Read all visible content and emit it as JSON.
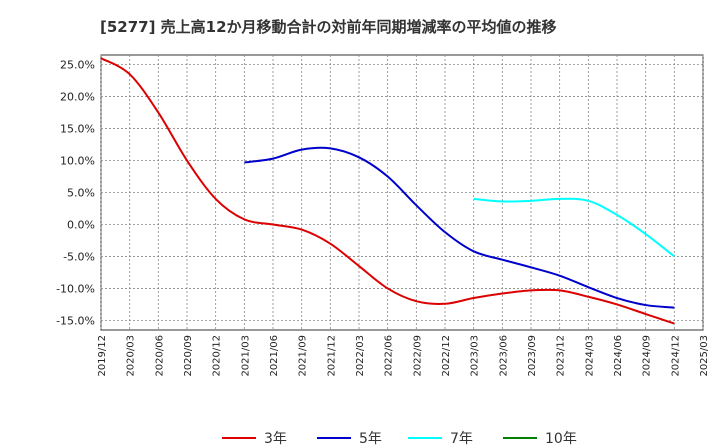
{
  "title": "[5277]  売上高12か月移動合計の対前年同期増減率の平均値の推移",
  "chart_data": {
    "type": "line",
    "title": "[5277]  売上高12か月移動合計の対前年同期増減率の平均値の推移",
    "xlabel": "",
    "ylabel": "",
    "ylim": [
      -16.5,
      26.5
    ],
    "yticks": [
      "25.0%",
      "20.0%",
      "15.0%",
      "10.0%",
      "5.0%",
      "0.0%",
      "-5.0%",
      "-10.0%",
      "-15.0%"
    ],
    "ytick_values": [
      25,
      20,
      15,
      10,
      5,
      0,
      -5,
      -10,
      -15
    ],
    "xticks": [
      "2019/12",
      "2020/03",
      "2020/06",
      "2020/09",
      "2020/12",
      "2021/03",
      "2021/06",
      "2021/09",
      "2021/12",
      "2022/03",
      "2022/06",
      "2022/09",
      "2022/12",
      "2023/03",
      "2023/06",
      "2023/09",
      "2023/12",
      "2024/03",
      "2024/06",
      "2024/09",
      "2024/12",
      "2025/03"
    ],
    "grid": true,
    "legend_position": "bottom",
    "series": [
      {
        "name": "3年",
        "color": "#dd0000",
        "x": [
          "2019/12",
          "2020/03",
          "2020/06",
          "2020/09",
          "2020/12",
          "2021/03",
          "2021/06",
          "2021/09",
          "2021/12",
          "2022/03",
          "2022/06",
          "2022/09",
          "2022/12",
          "2023/03",
          "2023/06",
          "2023/09",
          "2023/12",
          "2024/03",
          "2024/06",
          "2024/09",
          "2024/12"
        ],
        "values": [
          26.0,
          23.5,
          17.5,
          10.0,
          4.0,
          0.8,
          0.0,
          -0.8,
          -3.0,
          -6.5,
          -10.0,
          -12.0,
          -12.4,
          -11.5,
          -10.8,
          -10.3,
          -10.3,
          -11.3,
          -12.5,
          -14.0,
          -15.5
        ]
      },
      {
        "name": "5年",
        "color": "#0000cc",
        "x": [
          "2021/03",
          "2021/06",
          "2021/09",
          "2021/12",
          "2022/03",
          "2022/06",
          "2022/09",
          "2022/12",
          "2023/03",
          "2023/06",
          "2023/09",
          "2023/12",
          "2024/03",
          "2024/06",
          "2024/09",
          "2024/12"
        ],
        "values": [
          9.7,
          10.3,
          11.7,
          11.9,
          10.5,
          7.5,
          3.0,
          -1.2,
          -4.2,
          -5.5,
          -6.7,
          -8.0,
          -9.8,
          -11.5,
          -12.6,
          -13.0
        ]
      },
      {
        "name": "7年",
        "color": "#00ffff",
        "x": [
          "2023/03",
          "2023/06",
          "2023/09",
          "2023/12",
          "2024/03",
          "2024/06",
          "2024/09",
          "2024/12"
        ],
        "values": [
          4.0,
          3.6,
          3.7,
          4.0,
          3.7,
          1.5,
          -1.5,
          -5.0
        ]
      },
      {
        "name": "10年",
        "color": "#008000",
        "x": [],
        "values": []
      }
    ]
  }
}
